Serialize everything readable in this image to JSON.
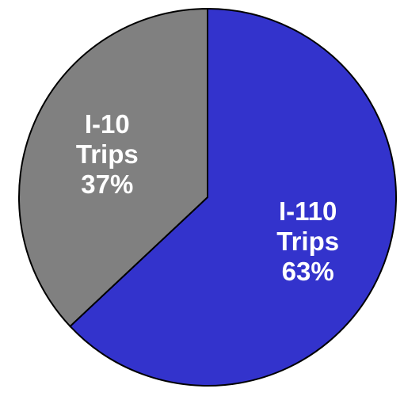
{
  "chart_data": {
    "type": "pie",
    "title": "",
    "start_angle_deg": 0,
    "direction": "clockwise",
    "slices": [
      {
        "name": "I-110 Trips",
        "label_lines": [
          "I-110",
          "Trips",
          "63%"
        ],
        "value": 63,
        "color": "#3333CC"
      },
      {
        "name": "I-10 Trips",
        "label_lines": [
          "I-10",
          "Trips",
          "37%"
        ],
        "value": 37,
        "color": "#808080"
      }
    ]
  }
}
